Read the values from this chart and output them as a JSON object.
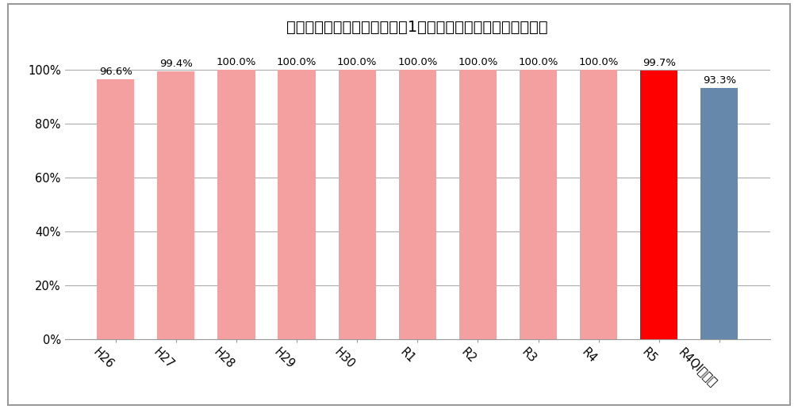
{
  "categories": [
    "H26",
    "H27",
    "H28",
    "H29",
    "H30",
    "R1",
    "R2",
    "R3",
    "R4",
    "R5",
    "R4QI平均値"
  ],
  "values": [
    96.6,
    99.4,
    100.0,
    100.0,
    100.0,
    100.0,
    100.0,
    100.0,
    100.0,
    99.7,
    93.3
  ],
  "bar_colors": [
    "#F4A0A0",
    "#F4A0A0",
    "#F4A0A0",
    "#F4A0A0",
    "#F4A0A0",
    "#F4A0A0",
    "#F4A0A0",
    "#F4A0A0",
    "#F4A0A0",
    "#FF0000",
    "#6688AA"
  ],
  "labels": [
    "96.6%",
    "99.4%",
    "100.0%",
    "100.0%",
    "100.0%",
    "100.0%",
    "100.0%",
    "100.0%",
    "100.0%",
    "99.7%",
    "93.3%"
  ],
  "title": "特定術式における手術開始前1時間以内の予防的抗菌薬投与率",
  "ylim": [
    0,
    110
  ],
  "yticks": [
    0,
    20,
    40,
    60,
    80,
    100
  ],
  "ytick_labels": [
    "0%",
    "20%",
    "40%",
    "60%",
    "80%",
    "100%"
  ],
  "title_fontsize": 14,
  "label_fontsize": 9.5,
  "tick_fontsize": 10.5,
  "background_color": "#FFFFFF",
  "grid_color": "#AAAAAA",
  "bar_width": 0.62
}
